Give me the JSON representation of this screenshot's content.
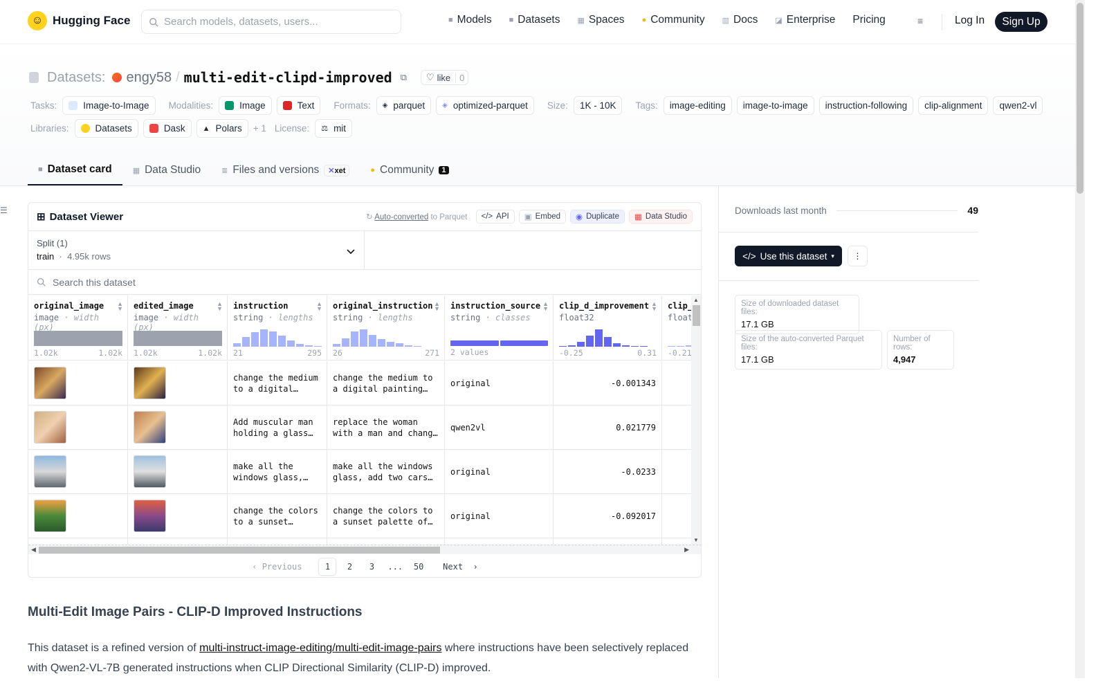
{
  "nav": {
    "brand": "Hugging Face",
    "search_placeholder": "Search models, datasets, users...",
    "links": [
      "Models",
      "Datasets",
      "Spaces",
      "Community",
      "Docs",
      "Enterprise",
      "Pricing"
    ],
    "login": "Log In",
    "signup": "Sign Up"
  },
  "header": {
    "label": "Datasets:",
    "owner": "engy58",
    "repo": "multi-edit-clipd-improved",
    "like_label": "like",
    "like_count": "0",
    "tasks_k": "Tasks:",
    "tasks": [
      "Image-to-Image"
    ],
    "modalities_k": "Modalities:",
    "modalities": [
      "Image",
      "Text"
    ],
    "formats_k": "Formats:",
    "formats": [
      "parquet",
      "optimized-parquet"
    ],
    "size_k": "Size:",
    "size": "1K - 10K",
    "tags_k": "Tags:",
    "tags": [
      "image-editing",
      "image-to-image",
      "instruction-following",
      "clip-alignment",
      "qwen2-vl"
    ],
    "libraries_k": "Libraries:",
    "libraries": [
      "Datasets",
      "Dask",
      "Polars"
    ],
    "libraries_more": "+ 1",
    "license_k": "License:",
    "license": "mit"
  },
  "tabs": [
    {
      "label": "Dataset card",
      "active": true
    },
    {
      "label": "Data Studio"
    },
    {
      "label": "Files and versions",
      "badge": "xet"
    },
    {
      "label": "Community",
      "badge": "1"
    }
  ],
  "viewer": {
    "title": "Dataset Viewer",
    "auto_link": "Auto-converted",
    "auto_rest": "to Parquet",
    "api": "API",
    "embed": "Embed",
    "duplicate": "Duplicate",
    "data_studio": "Data Studio",
    "split_label": "Split (1)",
    "split_name": "train",
    "split_rows": "4.95k rows",
    "search_placeholder": "Search this dataset",
    "columns": [
      {
        "name": "original_image",
        "type": "image",
        "meta": "width (px)",
        "min": "1.02k",
        "max": "1.02k"
      },
      {
        "name": "edited_image",
        "type": "image",
        "meta": "width (px)",
        "min": "1.02k",
        "max": "1.02k"
      },
      {
        "name": "instruction",
        "type": "string",
        "meta": "lengths",
        "min": "21",
        "max": "295",
        "hist": [
          0.2,
          0.55,
          0.85,
          1.0,
          0.9,
          0.65,
          0.35,
          0.15,
          0.1,
          0.05
        ]
      },
      {
        "name": "original_instruction",
        "type": "string",
        "meta": "lengths",
        "min": "26",
        "max": "271",
        "hist": [
          0.15,
          0.5,
          0.9,
          1.0,
          0.7,
          0.45,
          0.3,
          0.2,
          0.1,
          0.05
        ]
      },
      {
        "name": "instruction_source",
        "type": "string",
        "meta": "classes",
        "range": "2 values",
        "classes": [
          0.5,
          0.5
        ]
      },
      {
        "name": "clip_d_improvement",
        "type": "float32",
        "min": "-0.25",
        "max": "0.31",
        "hist": [
          0.05,
          0.1,
          0.3,
          0.65,
          1.0,
          0.55,
          0.2,
          0.08,
          0.05,
          0.05
        ]
      },
      {
        "name": "clip_",
        "type": "float",
        "min": "-0.21",
        "hist": [
          0.05,
          0.05,
          0.1
        ]
      }
    ],
    "rows": [
      {
        "instruction": "change the medium to a digital painting, keep details",
        "original_instruction": "change the medium to a digital painting with rich texture",
        "source": "original",
        "clip_d": "-0.001343"
      },
      {
        "instruction": "Add muscular man holding a glass of wine",
        "original_instruction": "replace the woman with a man and change the background",
        "source": "qwen2vl",
        "clip_d": "0.021779"
      },
      {
        "instruction": "make all the windows glass, add two cars in front",
        "original_instruction": "make all the windows glass, add two cars in the foreground",
        "source": "original",
        "clip_d": "-0.0233"
      },
      {
        "instruction": "change the colors to a sunset palette of warm tones",
        "original_instruction": "change the colors to a sunset palette of oranges and purples",
        "source": "original",
        "clip_d": "-0.092017"
      }
    ],
    "pager": {
      "prev": "Previous",
      "pages": [
        "1",
        "2",
        "3",
        "...",
        "50"
      ],
      "next": "Next"
    }
  },
  "readme": {
    "title": "Multi-Edit Image Pairs - CLIP-D Improved Instructions",
    "p1_a": "This dataset is a refined version of ",
    "p1_link": "multi-instruct-image-editing/multi-edit-image-pairs",
    "p1_b": " where instructions have been selectively replaced with Qwen2-VL-7B generated instructions when CLIP Directional Similarity (CLIP-D) improved."
  },
  "sidebar": {
    "downloads_label": "Downloads last month",
    "downloads": "49",
    "use_button": "Use this dataset",
    "dl_size_label": "Size of downloaded dataset files:",
    "dl_size": "17.1 GB",
    "pq_size_label": "Size of the auto-converted Parquet files:",
    "pq_size": "17.1 GB",
    "rows_label": "Number of rows:",
    "rows": "4,947"
  },
  "colors": {
    "accent": "#6366f1",
    "hist": "#a5b4fc",
    "dark": "#111827"
  }
}
